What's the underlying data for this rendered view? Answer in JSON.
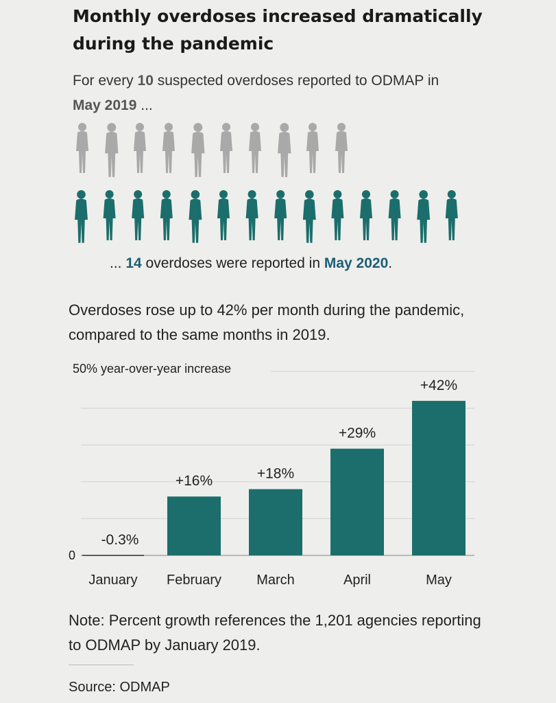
{
  "title": "Monthly overdoses increased dramatically during the pandemic",
  "intro": {
    "pre": "For every ",
    "count": "10",
    "mid": " suspected overdoses reported to ODMAP in ",
    "month": "May 2019",
    "post": " ..."
  },
  "outro": {
    "pre": "... ",
    "count": "14",
    "mid": " overdoses were reported in ",
    "month": "May 2020",
    "post": "."
  },
  "pictogram": {
    "baseline_people": 10,
    "current_people": 14,
    "baseline_color": "#a9a9a9",
    "current_color": "#1b6e6b"
  },
  "lede": "Overdoses rose up to 42% per month during the pandemic, compared to the same months in 2019.",
  "chart_data": {
    "type": "bar",
    "title": "",
    "ylabel": "50% year-over-year increase",
    "xlabel": "",
    "categories": [
      "January",
      "February",
      "March",
      "April",
      "May"
    ],
    "values": [
      -0.3,
      16,
      18,
      29,
      42
    ],
    "data_labels": [
      "-0.3%",
      "+16%",
      "+18%",
      "+29%",
      "+42%"
    ],
    "ylim": [
      0,
      50
    ],
    "yticks": [
      0,
      10,
      20,
      30,
      40,
      50
    ],
    "ytick_labels": [
      "0"
    ],
    "grid": true,
    "bar_color": "#1b6e6b"
  },
  "note": "Note: Percent growth references the 1,201 agencies reporting to ODMAP by January 2019.",
  "source": "Source: ODMAP"
}
